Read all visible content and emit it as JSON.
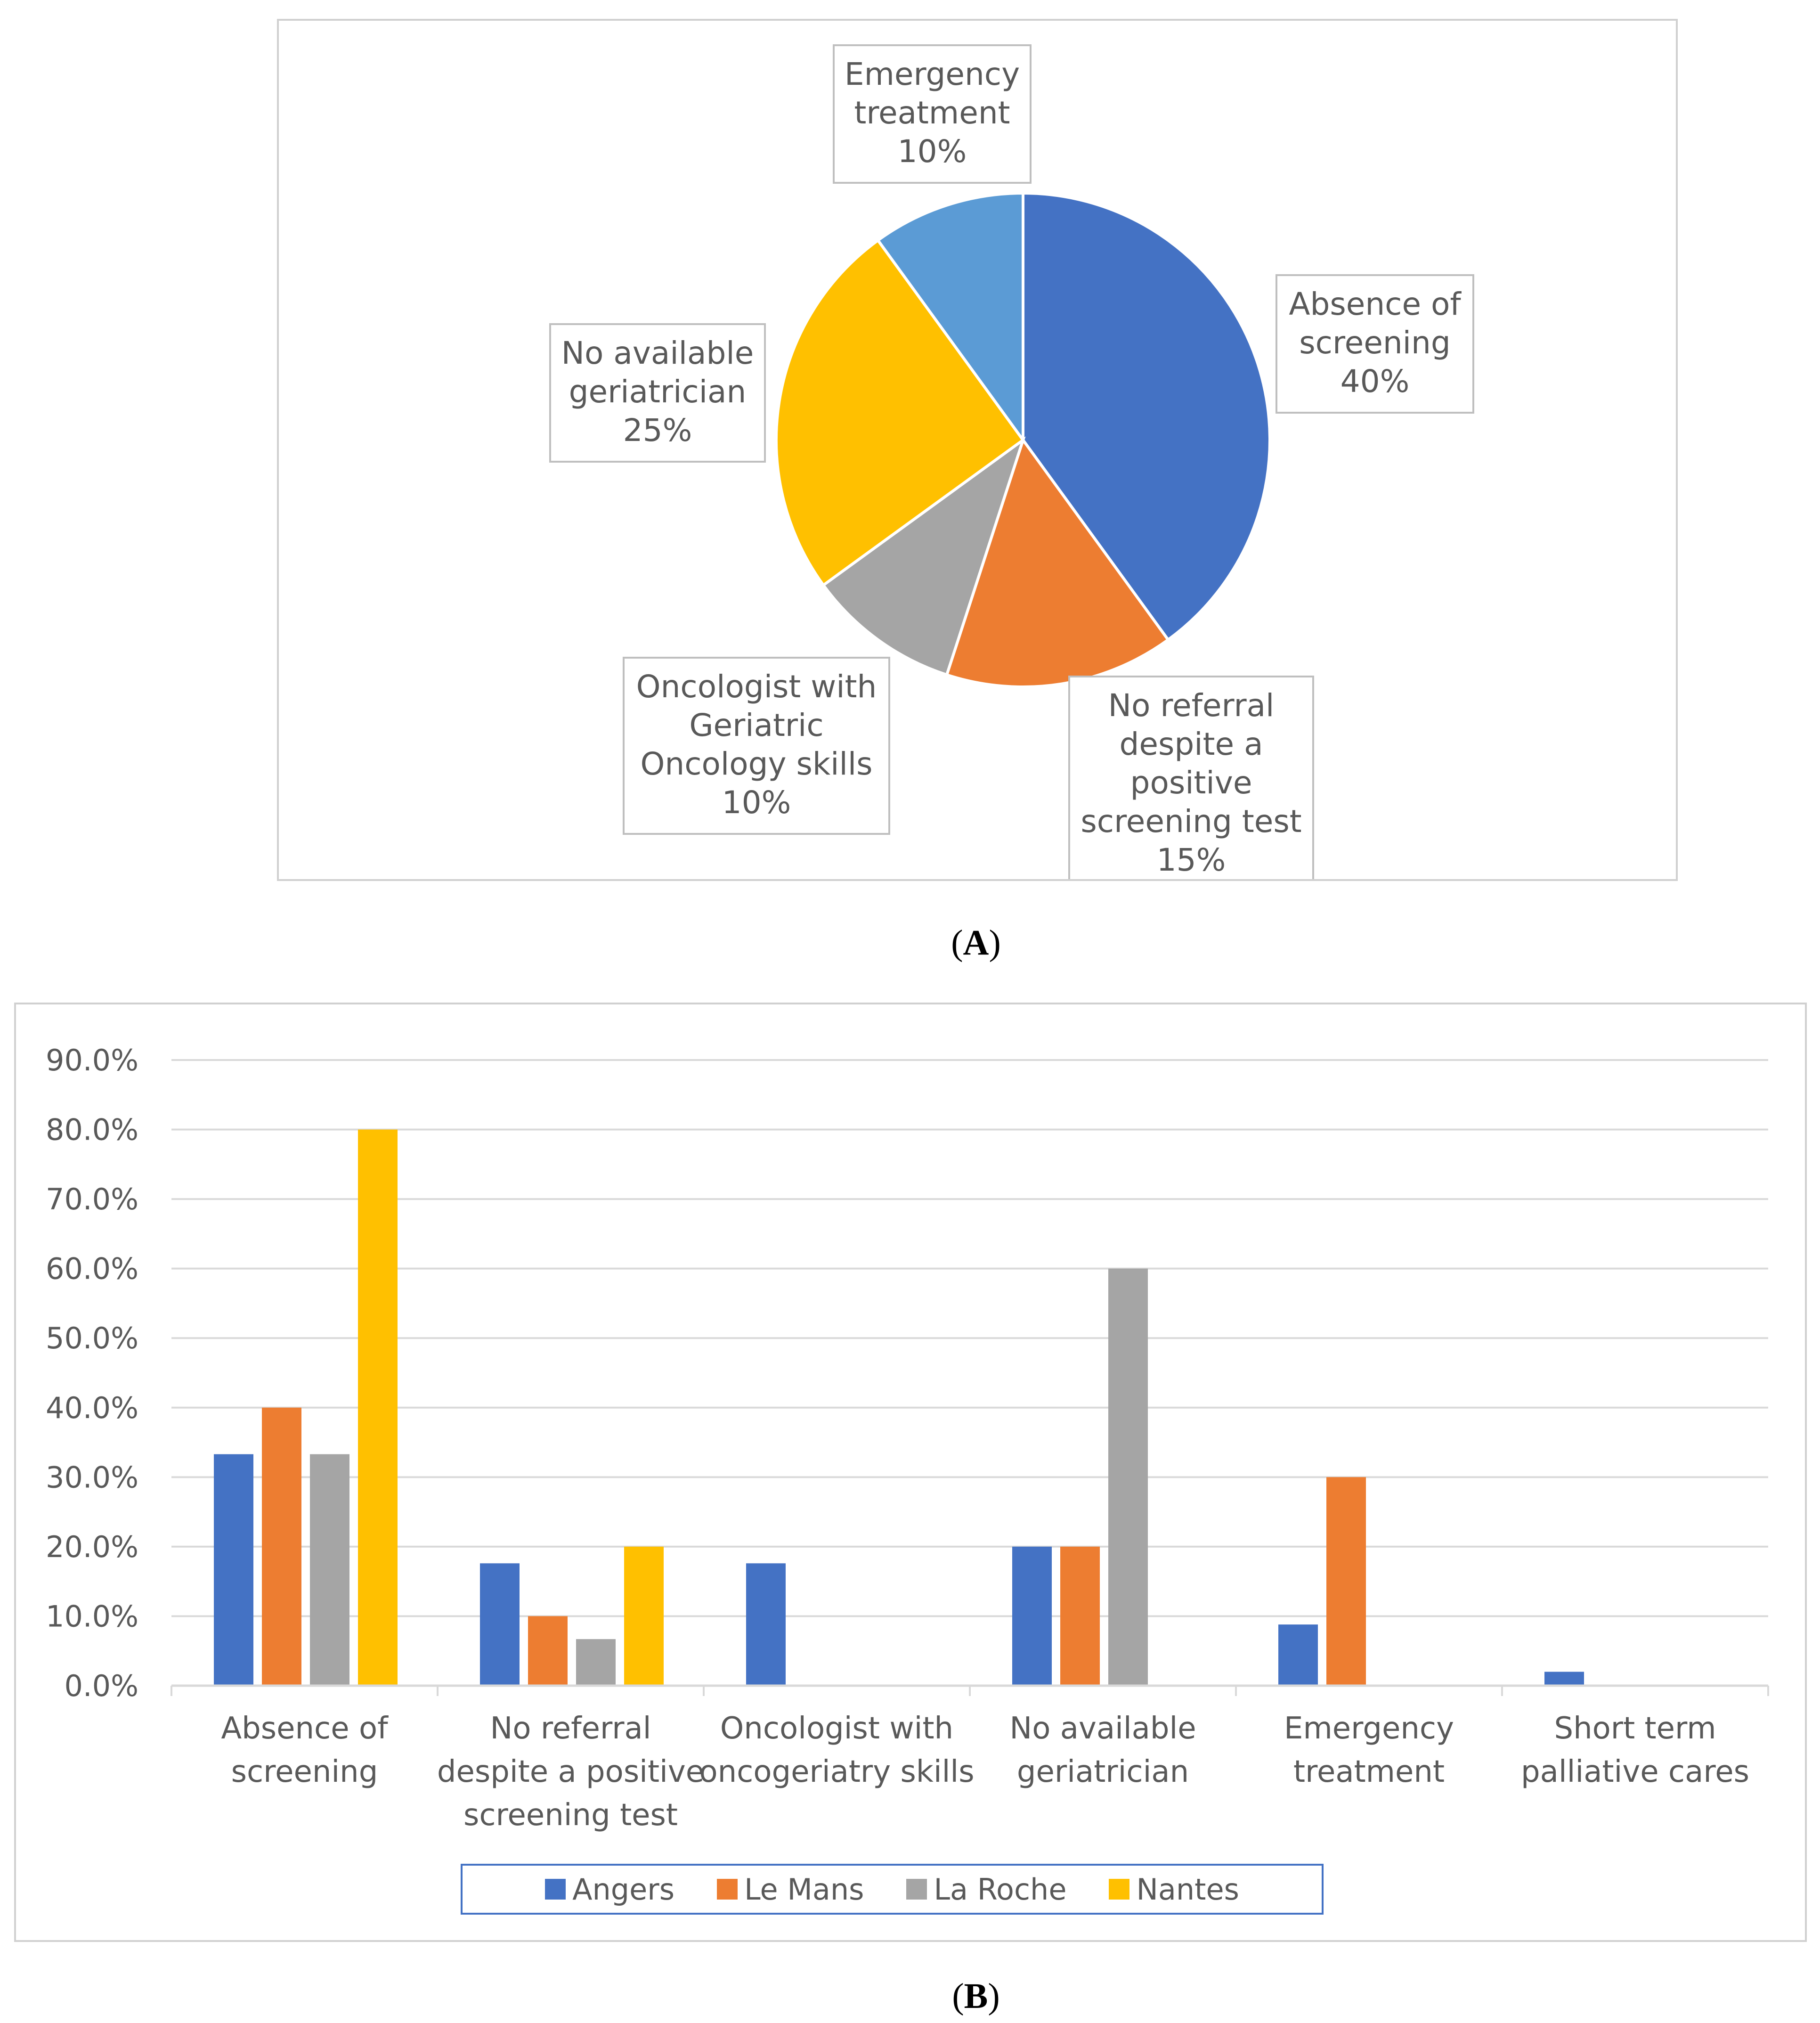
{
  "captions": {
    "a": "A",
    "b": "B"
  },
  "chart_data": [
    {
      "type": "pie",
      "slices": [
        {
          "label_lines": [
            "Absence of",
            "screening",
            "40%"
          ],
          "value": 40,
          "color": "#4472c4"
        },
        {
          "label_lines": [
            "No referral",
            "despite a",
            "positive",
            "screening test",
            "15%"
          ],
          "value": 15,
          "color": "#ed7d31"
        },
        {
          "label_lines": [
            "Oncologist with",
            "Geriatric",
            "Oncology skills",
            "10%"
          ],
          "value": 10,
          "color": "#a5a5a5"
        },
        {
          "label_lines": [
            "No available",
            "geriatrician",
            "25%"
          ],
          "value": 25,
          "color": "#ffc000"
        },
        {
          "label_lines": [
            "Emergency",
            "treatment",
            "10%"
          ],
          "value": 10,
          "color": "#5b9bd5"
        }
      ]
    },
    {
      "type": "bar",
      "categories": [
        [
          "Absence of",
          "screening"
        ],
        [
          "No referral",
          "despite a positive",
          "screening test"
        ],
        [
          "Oncologist with",
          "oncogeriatry skills"
        ],
        [
          "No available",
          "geriatrician"
        ],
        [
          "Emergency",
          "treatment"
        ],
        [
          "Short term",
          "palliative cares"
        ]
      ],
      "series": [
        {
          "name": "Angers",
          "color": "#4472c4",
          "values": [
            33.3,
            17.6,
            17.6,
            20.0,
            8.8,
            2.0
          ]
        },
        {
          "name": "Le Mans",
          "color": "#ed7d31",
          "values": [
            40.0,
            10.0,
            0,
            20.0,
            30.0,
            0
          ]
        },
        {
          "name": "La Roche",
          "color": "#a5a5a5",
          "values": [
            33.3,
            6.7,
            0,
            60.0,
            0,
            0
          ]
        },
        {
          "name": "Nantes",
          "color": "#ffc000",
          "values": [
            80.0,
            20.0,
            0,
            0,
            0,
            0
          ]
        }
      ],
      "ylim": [
        0,
        90
      ],
      "yticks": [
        "0.0%",
        "10.0%",
        "20.0%",
        "30.0%",
        "40.0%",
        "50.0%",
        "60.0%",
        "70.0%",
        "80.0%",
        "90.0%"
      ],
      "grid": true,
      "legend": "bottom"
    }
  ]
}
